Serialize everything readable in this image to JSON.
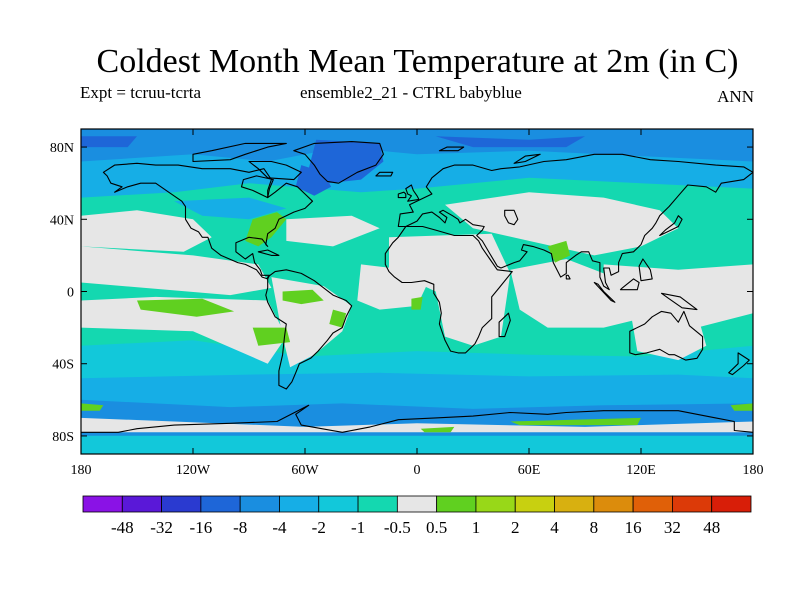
{
  "header": {
    "title": "Coldest Month Mean Temperature at 2m (in C)",
    "expt": "Expt = tcruu-tcrta",
    "ensemble": "ensemble2_21 - CTRL babyblue",
    "season": "ANN"
  },
  "map": {
    "projection": "cylindrical-equidistant",
    "lon_range": [
      -180,
      180
    ],
    "lat_range": [
      -90,
      90
    ],
    "xticks": [
      {
        "value": -180,
        "label": "180"
      },
      {
        "value": -120,
        "label": "120W"
      },
      {
        "value": -60,
        "label": "60W"
      },
      {
        "value": 0,
        "label": "0"
      },
      {
        "value": 60,
        "label": "60E"
      },
      {
        "value": 120,
        "label": "120E"
      },
      {
        "value": 180,
        "label": "180"
      }
    ],
    "yticks": [
      {
        "value": 80,
        "label": "80N"
      },
      {
        "value": 40,
        "label": "40N"
      },
      {
        "value": 0,
        "label": "0"
      },
      {
        "value": -40,
        "label": "40S"
      },
      {
        "value": -80,
        "label": "80S"
      }
    ],
    "colorbar": {
      "labels": [
        "-48",
        "-32",
        "-16",
        "-8",
        "-4",
        "-2",
        "-1",
        "-0.5",
        "0.5",
        "1",
        "2",
        "4",
        "8",
        "16",
        "32",
        "48"
      ],
      "colors": [
        "#8a12e6",
        "#5a18d8",
        "#2a3ad0",
        "#1e66d8",
        "#1a8ee0",
        "#16aee6",
        "#12c8da",
        "#14d8b0",
        "#e6e6e6",
        "#60d020",
        "#98d818",
        "#c8d010",
        "#d8b010",
        "#dc8c0c",
        "#e06008",
        "#dc3a08",
        "#d81e08"
      ]
    },
    "background_color": "#14d8b0",
    "field_colors": {
      "neutral": "#e6e6e6",
      "light_blue": "#12c8da",
      "mid_blue": "#16aee6",
      "blue": "#1a8ee0",
      "deep_blue": "#1e66d8",
      "green": "#60d020"
    }
  }
}
